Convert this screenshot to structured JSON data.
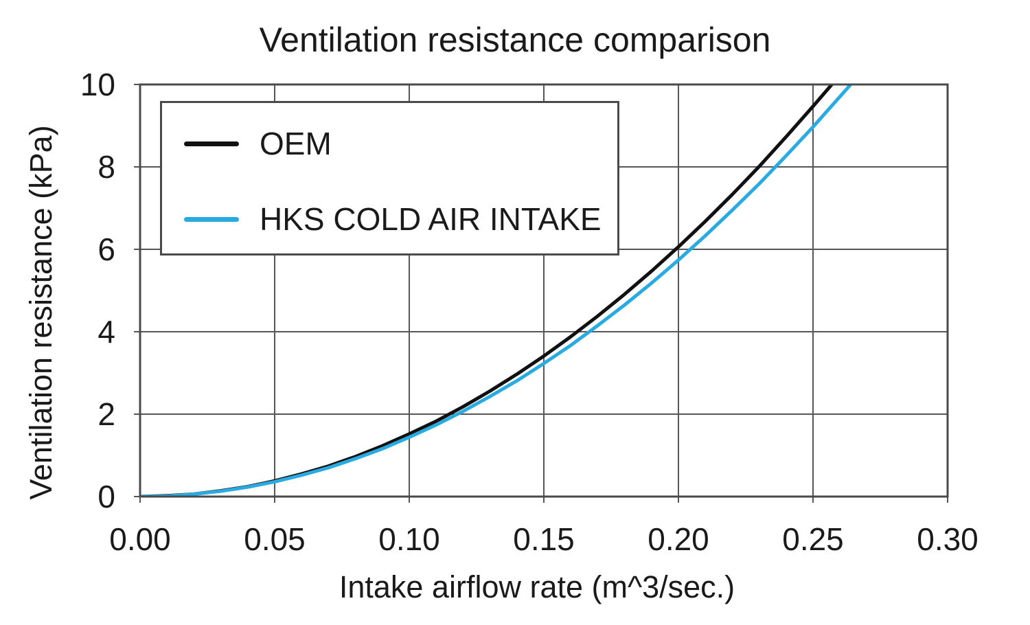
{
  "chart_data": {
    "type": "line",
    "title": "Ventilation resistance comparison",
    "xlabel": "Intake airflow rate (m^3/sec.)",
    "ylabel": "Ventilation resistance (kPa)",
    "xlim": [
      0,
      0.3
    ],
    "ylim": [
      0,
      10
    ],
    "grid": true,
    "legend_position": "upper-left",
    "x_tick_values": [
      0,
      0.05,
      0.1,
      0.15,
      0.2,
      0.25,
      0.3
    ],
    "x_tick_labels": [
      "0.00",
      "0.05",
      "0.10",
      "0.15",
      "0.20",
      "0.25",
      "0.30"
    ],
    "y_tick_values": [
      0,
      2,
      4,
      6,
      8,
      10
    ],
    "y_tick_labels": [
      "0",
      "2",
      "4",
      "6",
      "8",
      "10"
    ],
    "series": [
      {
        "name": "OEM",
        "color": "#111111",
        "x": [
          0,
          0.01,
          0.02,
          0.03,
          0.04,
          0.05,
          0.06,
          0.07,
          0.08,
          0.09,
          0.1,
          0.11,
          0.12,
          0.13,
          0.14,
          0.15,
          0.16,
          0.17,
          0.18,
          0.19,
          0.2,
          0.21,
          0.22,
          0.23,
          0.24,
          0.25,
          0.257
        ],
        "y": [
          0,
          0.02,
          0.06,
          0.14,
          0.24,
          0.38,
          0.55,
          0.74,
          0.97,
          1.23,
          1.52,
          1.83,
          2.18,
          2.56,
          2.97,
          3.41,
          3.88,
          4.38,
          4.91,
          5.47,
          6.06,
          6.68,
          7.33,
          8.01,
          8.73,
          9.47,
          10
        ]
      },
      {
        "name": "HKS COLD AIR INTAKE",
        "color": "#29abe2",
        "x": [
          0,
          0.01,
          0.02,
          0.03,
          0.04,
          0.05,
          0.06,
          0.07,
          0.08,
          0.09,
          0.1,
          0.11,
          0.12,
          0.13,
          0.14,
          0.15,
          0.16,
          0.17,
          0.18,
          0.19,
          0.2,
          0.21,
          0.22,
          0.23,
          0.24,
          0.25,
          0.264
        ],
        "y": [
          0,
          0.01,
          0.06,
          0.13,
          0.23,
          0.36,
          0.52,
          0.7,
          0.92,
          1.16,
          1.44,
          1.74,
          2.07,
          2.43,
          2.81,
          3.23,
          3.67,
          4.15,
          4.65,
          5.18,
          5.74,
          6.33,
          6.95,
          7.59,
          8.27,
          8.97,
          10
        ]
      }
    ]
  },
  "colors": {
    "grid": "#565656",
    "border": "#4a4a4a",
    "text": "#1a1a1a",
    "background": "#ffffff"
  }
}
